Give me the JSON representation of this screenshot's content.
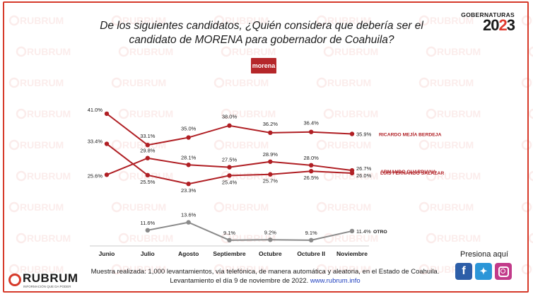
{
  "header": {
    "title_line1": "De los siguientes candidatos, ¿Quién considera que debería ser el",
    "title_line2": "candidato de MORENA para gobernador de Coahuila?",
    "badge_top": "GOBERNATURAS",
    "badge_year_a": "20",
    "badge_year_b": "2",
    "badge_year_c": "3",
    "party_logo": "morena"
  },
  "watermark": "RUBRUM",
  "chart_data": {
    "type": "line",
    "categories": [
      "Junio",
      "Julio",
      "Agosto",
      "Septiembre",
      "Octubre",
      "Octubre II",
      "Noviembre"
    ],
    "series": [
      {
        "name": "RICARDO MEJÍA BERDEJA",
        "color": "#b01f24",
        "values": [
          41.0,
          33.1,
          35.0,
          38.0,
          36.2,
          36.4,
          35.9
        ],
        "labels": [
          "41.0%",
          "33.1%",
          "35.0%",
          "38.0%",
          "36.2%",
          "36.4%",
          "35.9%"
        ]
      },
      {
        "name": "ARMANDO GUARDIANA",
        "color": "#b01f24",
        "values": [
          33.4,
          25.5,
          23.3,
          25.4,
          25.7,
          26.5,
          26.0
        ],
        "labels": [
          "33.4%",
          "25.5%",
          "23.3%",
          "25.4%",
          "25.7%",
          "26.5%",
          "26.0%"
        ]
      },
      {
        "name": "LUIS FERNANDO SALAZAR",
        "color": "#b01f24",
        "values": [
          25.6,
          29.8,
          28.1,
          27.5,
          28.9,
          28.0,
          26.7
        ],
        "labels": [
          "25.6%",
          "29.8%",
          "28.1%",
          "27.5%",
          "28.9%",
          "28.0%",
          "26.7%"
        ]
      },
      {
        "name": "OTRO",
        "color": "#8a8a8a",
        "values": [
          null,
          11.6,
          13.6,
          9.1,
          9.2,
          9.1,
          11.4
        ],
        "labels": [
          "",
          "11.6%",
          "13.6%",
          "9.1%",
          "9.2%",
          "9.1%",
          "11.4%"
        ]
      }
    ],
    "ylim": [
      0,
      45
    ],
    "grid": false,
    "legend": "right-end labels"
  },
  "footer": {
    "line1": "Muestra realizada: 1,000 levantamientos, vía telefónica, de manera automática y aleatoria, en el Estado de Coahuila.",
    "line2_prefix": "Levantamiento el día 9 de noviembre de 2022.",
    "url": "www.rubrum.info",
    "presiona": "Presiona aquí",
    "social": [
      "facebook-icon",
      "twitter-icon",
      "instagram-icon"
    ]
  },
  "logo": {
    "name": "RUBRUM",
    "tagline": "INFORMACIÓN QUE DA PODER"
  }
}
